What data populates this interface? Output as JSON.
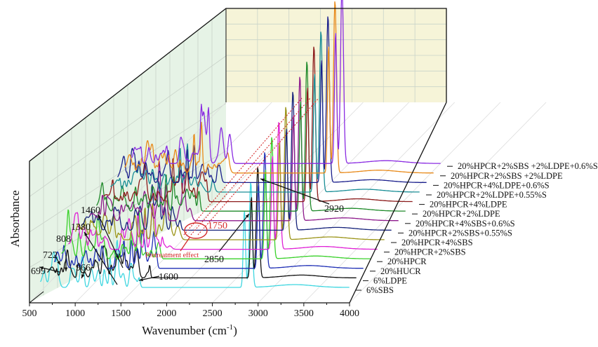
{
  "chart_data": {
    "type": "line",
    "style": "3d-waterfall",
    "title": "",
    "xlabel": "Wavenumber (cm-1)",
    "xlabel_parts": {
      "main": "Wavenumber (cm",
      "sup": "-1",
      "tail": ")"
    },
    "ylabel": "Absorbance",
    "xlim": [
      500,
      4000
    ],
    "x_ticks": [
      500,
      1000,
      1500,
      2000,
      2500,
      3000,
      3500,
      4000
    ],
    "x_tick_labels": [
      "500",
      "1000",
      "1500",
      "2000",
      "2500",
      "3000",
      "3500",
      "4000"
    ],
    "grid": true,
    "legend": "series labels along right depth axis",
    "series": [
      {
        "name": "6%SBS",
        "color": "#3fd6e0"
      },
      {
        "name": "6%LDPE",
        "color": "#111111"
      },
      {
        "name": "20%HUCR",
        "color": "#1f2fb5"
      },
      {
        "name": "20%HPCR",
        "color": "#39d12a"
      },
      {
        "name": "20%HPCR+2%SBS",
        "color": "#e021d6"
      },
      {
        "name": "20%HPCR+4%SBS",
        "color": "#9b9418"
      },
      {
        "name": "20%HPCR+2%SBS+0.55%S",
        "color": "#15227a"
      },
      {
        "name": "20%HPCR+4%SBS+0.6%S",
        "color": "#8e1b8c"
      },
      {
        "name": "20%HPCR+2%LDPE",
        "color": "#1f8a2a"
      },
      {
        "name": "20%HPCR+4%LDPE",
        "color": "#8b1a1a"
      },
      {
        "name": "20%HPCR+2%LDPE+0.55%S",
        "color": "#1a8e96"
      },
      {
        "name": "20%HPCR+4%LDPE+0.6%S",
        "color": "#1a1f8c"
      },
      {
        "name": "20%HPCR+2%SBS +2%LDPE",
        "color": "#e88a1a"
      },
      {
        "name": "20%HPCR+2%SBS +2%LDPE+0.6%S",
        "color": "#8a2be2"
      }
    ],
    "peak_annotations": [
      {
        "label": "699",
        "wavenumber": 699
      },
      {
        "label": "722",
        "wavenumber": 722
      },
      {
        "label": "808",
        "wavenumber": 808
      },
      {
        "label": "966",
        "wavenumber": 966
      },
      {
        "label": "1380",
        "wavenumber": 1380
      },
      {
        "label": "1460",
        "wavenumber": 1460
      },
      {
        "label": "1600",
        "wavenumber": 1600
      },
      {
        "label": "2850",
        "wavenumber": 2850
      },
      {
        "label": "2920",
        "wavenumber": 2920
      }
    ],
    "highlight": {
      "label": "1750",
      "note": "Pretreatment effect",
      "wavenumber": 1750
    },
    "colors": {
      "back_wall": "#f6f4d8",
      "side_wall": "#e6f3e6",
      "grid": "#c9d3c9",
      "highlight": "#d42a2a"
    }
  }
}
